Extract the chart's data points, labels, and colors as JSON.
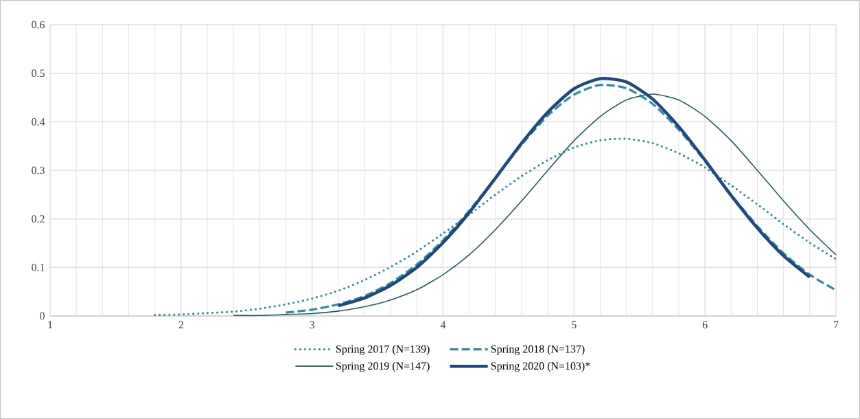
{
  "chart_data": {
    "type": "line",
    "xlim": [
      1,
      7
    ],
    "ylim": [
      0,
      0.6
    ],
    "xticks": [
      1,
      2,
      3,
      4,
      5,
      6,
      7
    ],
    "yticks": [
      0,
      0.1,
      0.2,
      0.3,
      0.4,
      0.5,
      0.6
    ],
    "grid": true,
    "legend": "bottom",
    "series": [
      {
        "name": "Spring 2017 (N=139)",
        "color": "#2e8ba0",
        "line_style": "dotted",
        "x": [
          1.8,
          2.0,
          2.2,
          2.4,
          2.6,
          2.8,
          3.0,
          3.2,
          3.4,
          3.6,
          3.8,
          4.0,
          4.2,
          4.4,
          4.6,
          4.8,
          5.0,
          5.2,
          5.4,
          5.6,
          5.8,
          6.0,
          6.2,
          6.4,
          6.6,
          6.8,
          7.0
        ],
        "values": [
          0.002,
          0.003,
          0.006,
          0.009,
          0.015,
          0.024,
          0.036,
          0.052,
          0.074,
          0.101,
          0.133,
          0.17,
          0.209,
          0.25,
          0.288,
          0.321,
          0.347,
          0.362,
          0.365,
          0.356,
          0.335,
          0.306,
          0.269,
          0.23,
          0.189,
          0.151,
          0.117
        ]
      },
      {
        "name": "Spring 2018 (N=137)",
        "color": "#2e8ba0",
        "line_style": "dashed",
        "x": [
          2.8,
          3.0,
          3.2,
          3.4,
          3.6,
          3.8,
          4.0,
          4.2,
          4.4,
          4.6,
          4.8,
          5.0,
          5.2,
          5.4,
          5.6,
          5.8,
          6.0,
          6.2,
          6.4,
          6.6,
          6.8,
          7.0
        ],
        "values": [
          0.007,
          0.013,
          0.024,
          0.041,
          0.068,
          0.106,
          0.156,
          0.217,
          0.284,
          0.353,
          0.413,
          0.456,
          0.476,
          0.469,
          0.437,
          0.384,
          0.319,
          0.25,
          0.185,
          0.129,
          0.085,
          0.053
        ]
      },
      {
        "name": "Spring 2019 (N=147)",
        "color": "#1f5c63",
        "line_style": "solid",
        "x": [
          2.4,
          2.6,
          2.8,
          3.0,
          3.2,
          3.4,
          3.6,
          3.8,
          4.0,
          4.2,
          4.4,
          4.6,
          4.8,
          5.0,
          5.2,
          5.4,
          5.6,
          5.8,
          6.0,
          6.2,
          6.4,
          6.6,
          6.8,
          7.0
        ],
        "values": [
          0.001,
          0.001,
          0.003,
          0.005,
          0.01,
          0.019,
          0.033,
          0.054,
          0.085,
          0.126,
          0.178,
          0.237,
          0.3,
          0.361,
          0.411,
          0.445,
          0.457,
          0.445,
          0.411,
          0.361,
          0.3,
          0.237,
          0.178,
          0.126
        ]
      },
      {
        "name": "Spring 2020 (N=103)*",
        "color": "#1f497d",
        "line_style": "solid",
        "x": [
          3.2,
          3.4,
          3.6,
          3.8,
          4.0,
          4.2,
          4.4,
          4.6,
          4.8,
          5.0,
          5.2,
          5.4,
          5.6,
          5.8,
          6.0,
          6.2,
          6.4,
          6.6,
          6.8
        ],
        "values": [
          0.021,
          0.037,
          0.063,
          0.1,
          0.151,
          0.213,
          0.284,
          0.356,
          0.42,
          0.468,
          0.489,
          0.482,
          0.447,
          0.39,
          0.321,
          0.248,
          0.181,
          0.124,
          0.08
        ]
      }
    ]
  }
}
